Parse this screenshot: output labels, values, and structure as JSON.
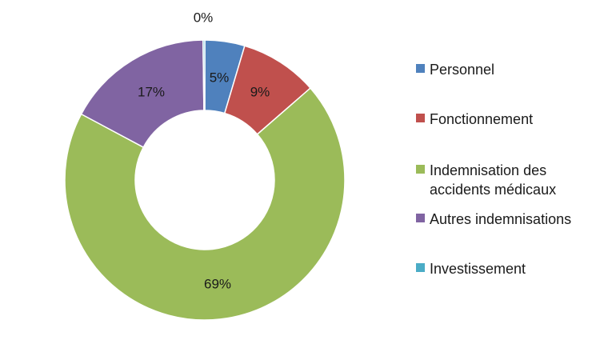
{
  "chart_data": {
    "type": "pie",
    "donut": true,
    "title": "",
    "legend_position": "right",
    "categories": [
      "Personnel",
      "Fonctionnement",
      "Indemnisation des accidents médicaux",
      "Autres indemnisations",
      "Investissement"
    ],
    "values": [
      4.6,
      9.0,
      69.2,
      17.0,
      0.2
    ],
    "labels": [
      "5%",
      "9%",
      "69%",
      "17%",
      "0%"
    ],
    "colors": [
      "#4F81BD",
      "#C0504D",
      "#9BBB59",
      "#8064A2",
      "#4BACC6"
    ]
  },
  "legend": [
    {
      "label": "Personnel"
    },
    {
      "label": "Fonctionnement"
    },
    {
      "label": "Indemnisation des accidents médicaux"
    },
    {
      "label": "Autres indemnisations"
    },
    {
      "label": "Investissement"
    }
  ]
}
